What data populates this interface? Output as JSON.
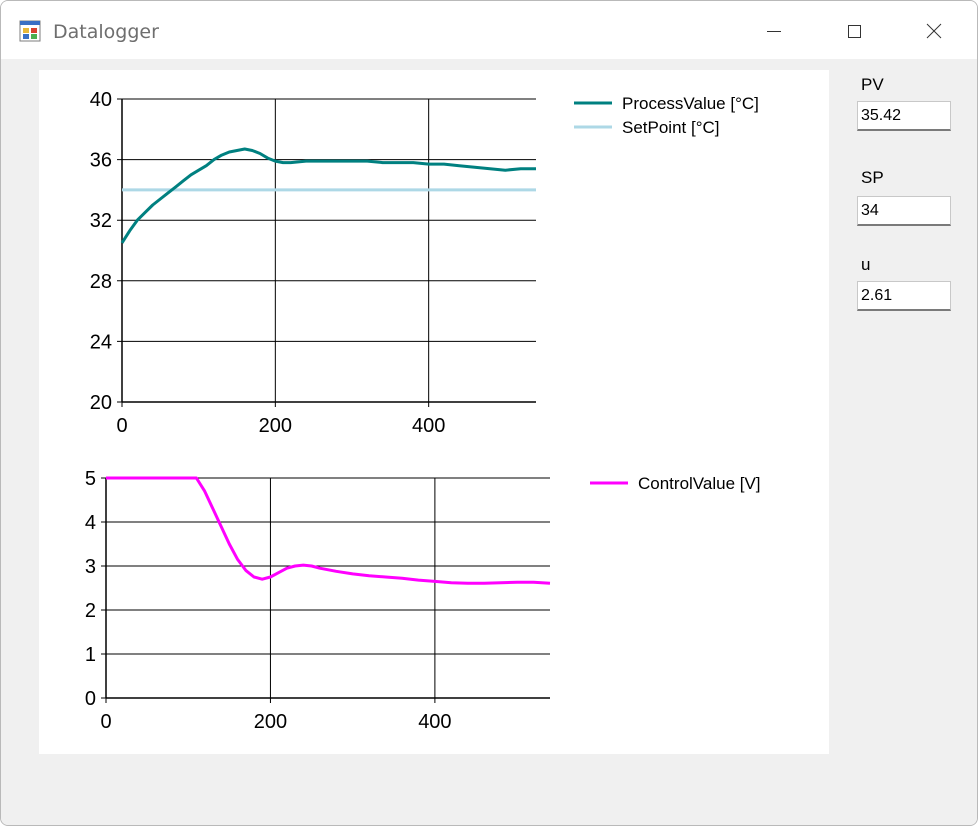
{
  "window": {
    "title": "Datalogger",
    "icon": "app-form-icon"
  },
  "controls": {
    "minimize": "minimize-icon",
    "maximize": "maximize-icon",
    "close": "close-icon"
  },
  "fields": [
    {
      "label": "PV",
      "value": "35.42"
    },
    {
      "label": "SP",
      "value": "34"
    },
    {
      "label": "u",
      "value": "2.61"
    }
  ],
  "chart_data": [
    {
      "type": "line",
      "title": "",
      "xlabel": "",
      "ylabel": "",
      "xlim": [
        0,
        540
      ],
      "ylim": [
        20,
        40
      ],
      "x_ticks": [
        "0",
        "200",
        "400"
      ],
      "y_ticks": [
        "20",
        "24",
        "28",
        "32",
        "36",
        "40"
      ],
      "grid": true,
      "legend": "top-right",
      "series": [
        {
          "name": "ProcessValue [°C]",
          "color": "#008080",
          "x": [
            0,
            10,
            20,
            30,
            40,
            50,
            60,
            70,
            80,
            90,
            100,
            110,
            120,
            130,
            140,
            150,
            160,
            170,
            180,
            190,
            200,
            210,
            220,
            240,
            260,
            280,
            300,
            320,
            340,
            360,
            380,
            400,
            420,
            440,
            460,
            480,
            500,
            520,
            540
          ],
          "y": [
            30.5,
            31.3,
            32.0,
            32.5,
            33.0,
            33.4,
            33.8,
            34.2,
            34.6,
            35.0,
            35.3,
            35.6,
            36.0,
            36.3,
            36.5,
            36.6,
            36.7,
            36.6,
            36.4,
            36.1,
            35.9,
            35.8,
            35.8,
            35.9,
            35.9,
            35.9,
            35.9,
            35.9,
            35.8,
            35.8,
            35.8,
            35.7,
            35.7,
            35.6,
            35.5,
            35.4,
            35.3,
            35.4,
            35.4
          ]
        },
        {
          "name": "SetPoint [°C]",
          "color": "#add8e6",
          "x": [
            0,
            540
          ],
          "y": [
            34,
            34
          ]
        }
      ]
    },
    {
      "type": "line",
      "title": "",
      "xlabel": "",
      "ylabel": "",
      "xlim": [
        0,
        540
      ],
      "ylim": [
        0,
        5
      ],
      "x_ticks": [
        "0",
        "200",
        "400"
      ],
      "y_ticks": [
        "0",
        "1",
        "2",
        "3",
        "4",
        "5"
      ],
      "grid": true,
      "legend": "top-right",
      "series": [
        {
          "name": "ControlValue [V]",
          "color": "#ff00ff",
          "x": [
            0,
            60,
            110,
            120,
            130,
            140,
            150,
            160,
            170,
            180,
            190,
            200,
            210,
            220,
            230,
            240,
            250,
            260,
            280,
            300,
            320,
            340,
            360,
            380,
            400,
            420,
            440,
            460,
            480,
            500,
            520,
            540
          ],
          "y": [
            5,
            5,
            5,
            4.7,
            4.3,
            3.9,
            3.5,
            3.15,
            2.9,
            2.75,
            2.7,
            2.75,
            2.85,
            2.95,
            3.0,
            3.02,
            3.0,
            2.95,
            2.88,
            2.82,
            2.78,
            2.75,
            2.72,
            2.68,
            2.65,
            2.62,
            2.61,
            2.61,
            2.62,
            2.63,
            2.63,
            2.61
          ]
        }
      ]
    }
  ]
}
